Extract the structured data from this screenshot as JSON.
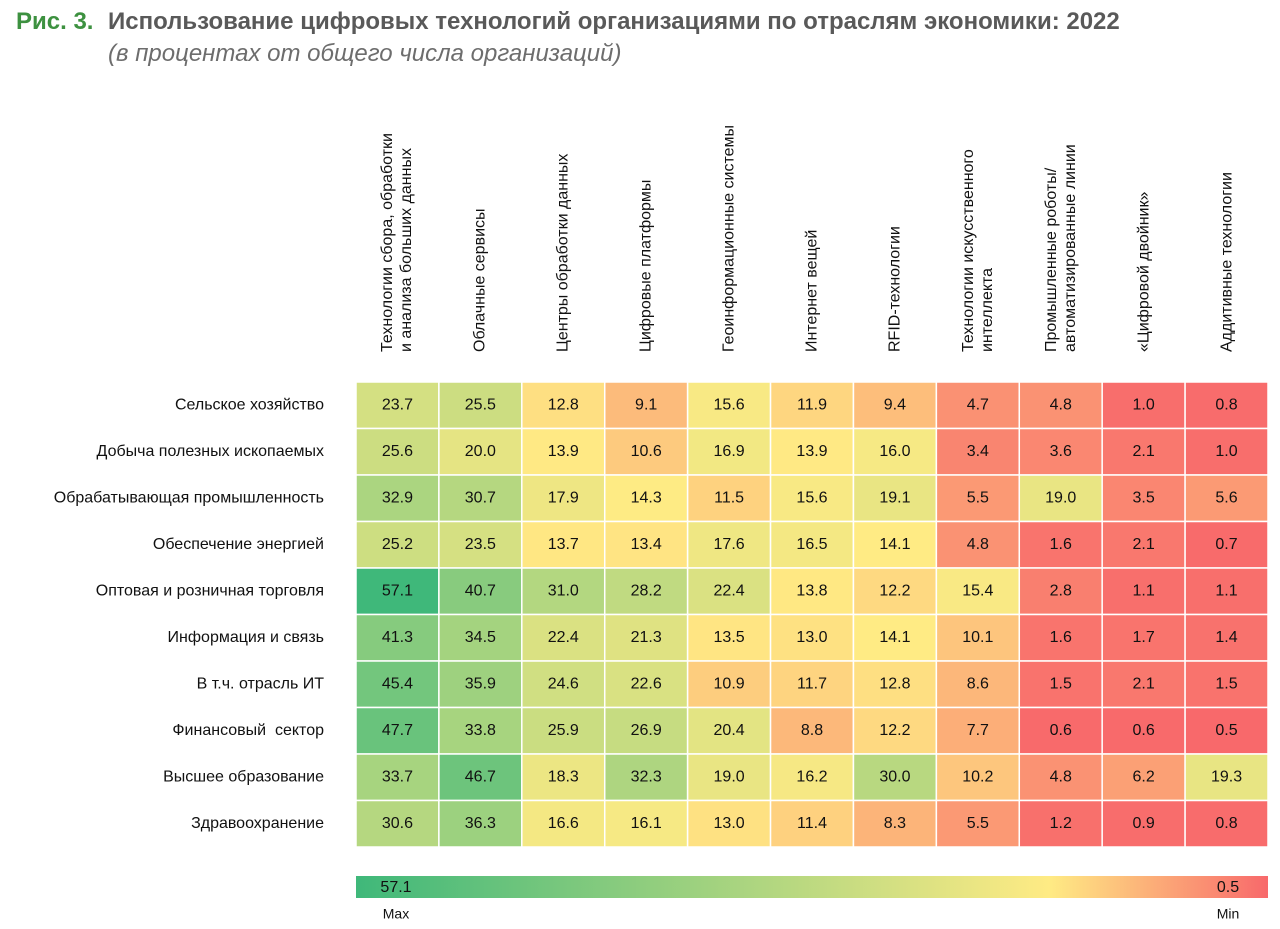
{
  "chart_data": {
    "type": "heatmap",
    "title_prefix": "Рис. 3.",
    "title": "Использование цифровых технологий организациями по отраслям экономики: 2022",
    "subtitle": "(в процентах от общего числа организаций)",
    "columns": [
      "Технологии сбора, обработки\nи анализа больших данных",
      "Облачные сервисы",
      "Центры обработки данных",
      "Цифровые платформы",
      "Геоинформационные системы",
      "Интернет вещей",
      "RFID-технологии",
      "Технологии искусственного\nинтеллекта",
      "Промышленные роботы/\nавтоматизированные линии",
      "«Цифровой двойник»",
      "Аддитивные технологии"
    ],
    "rows": [
      "Сельское хозяйство",
      "Добыча полезных ископаемых",
      "Обрабатывающая промышленность",
      "Обеспечение энергией",
      "Оптовая и розничная торговля",
      "Информация и связь",
      "В т.ч. отрасль ИТ",
      "Финансовый  сектор",
      "Высшее образование",
      "Здравоохранение"
    ],
    "values": [
      [
        23.7,
        25.5,
        12.8,
        9.1,
        15.6,
        11.9,
        9.4,
        4.7,
        4.8,
        1.0,
        0.8
      ],
      [
        25.6,
        20.0,
        13.9,
        10.6,
        16.9,
        13.9,
        16.0,
        3.4,
        3.6,
        2.1,
        1.0
      ],
      [
        32.9,
        30.7,
        17.9,
        14.3,
        11.5,
        15.6,
        19.1,
        5.5,
        19.0,
        3.5,
        5.6
      ],
      [
        25.2,
        23.5,
        13.7,
        13.4,
        17.6,
        16.5,
        14.1,
        4.8,
        1.6,
        2.1,
        0.7
      ],
      [
        57.1,
        40.7,
        31.0,
        28.2,
        22.4,
        13.8,
        12.2,
        15.4,
        2.8,
        1.1,
        1.1
      ],
      [
        41.3,
        34.5,
        22.4,
        21.3,
        13.5,
        13.0,
        14.1,
        10.1,
        1.6,
        1.7,
        1.4
      ],
      [
        45.4,
        35.9,
        24.6,
        22.6,
        10.9,
        11.7,
        12.8,
        8.6,
        1.5,
        2.1,
        1.5
      ],
      [
        47.7,
        33.8,
        25.9,
        26.9,
        20.4,
        8.8,
        12.2,
        7.7,
        0.6,
        0.6,
        0.5
      ],
      [
        33.7,
        46.7,
        18.3,
        32.3,
        19.0,
        16.2,
        30.0,
        10.2,
        4.8,
        6.2,
        19.3
      ],
      [
        30.6,
        36.3,
        16.6,
        16.1,
        13.0,
        11.4,
        8.3,
        5.5,
        1.2,
        0.9,
        0.8
      ]
    ],
    "value_labels": [
      [
        "23.7",
        "25.5",
        "12.8",
        "9.1",
        "15.6",
        "11.9",
        "9.4",
        "4.7",
        "4.8",
        "1.0",
        "0.8"
      ],
      [
        "25.6",
        "20.0",
        "13.9",
        "10.6",
        "16.9",
        "13.9",
        "16.0",
        "3.4",
        "3.6",
        "2.1",
        "1.0"
      ],
      [
        "32.9",
        "30.7",
        "17.9",
        "14.3",
        "11.5",
        "15.6",
        "19.1",
        "5.5",
        "19.0",
        "3.5",
        "5.6"
      ],
      [
        "25.2",
        "23.5",
        "13.7",
        "13.4",
        "17.6",
        "16.5",
        "14.1",
        "4.8",
        "1.6",
        "2.1",
        "0.7"
      ],
      [
        "57.1",
        "40.7",
        "31.0",
        "28.2",
        "22.4",
        "13.8",
        "12.2",
        "15.4",
        "2.8",
        "1.1",
        "1.1"
      ],
      [
        "41.3",
        "34.5",
        "22.4",
        "21.3",
        "13.5",
        "13.0",
        "14.1",
        "10.1",
        "1.6",
        "1.7",
        "1.4"
      ],
      [
        "45.4",
        "35.9",
        "24.6",
        "22.6",
        "10.9",
        "11.7",
        "12.8",
        "8.6",
        "1.5",
        "2.1",
        "1.5"
      ],
      [
        "47.7",
        "33.8",
        "25.9",
        "26.9",
        "20.4",
        "8.8",
        "12.2",
        "7.7",
        "0.6",
        "0.6",
        "0.5"
      ],
      [
        "33.7",
        "46.7",
        "18.3",
        "32.3",
        "19.0",
        "16.2",
        "30.0",
        "10.2",
        "4.8",
        "6.2",
        "19.3"
      ],
      [
        "30.6",
        "36.3",
        "16.6",
        "16.1",
        "13.0",
        "11.4",
        "8.3",
        "5.5",
        "1.2",
        "0.9",
        "0.8"
      ]
    ],
    "zlim": [
      0.5,
      57.1
    ],
    "colorbar_max_label": "Max",
    "colorbar_min_label": "Min",
    "colors": {
      "min": "#f8696b",
      "mid": "#ffeb84",
      "max": "#3fb87a"
    }
  }
}
